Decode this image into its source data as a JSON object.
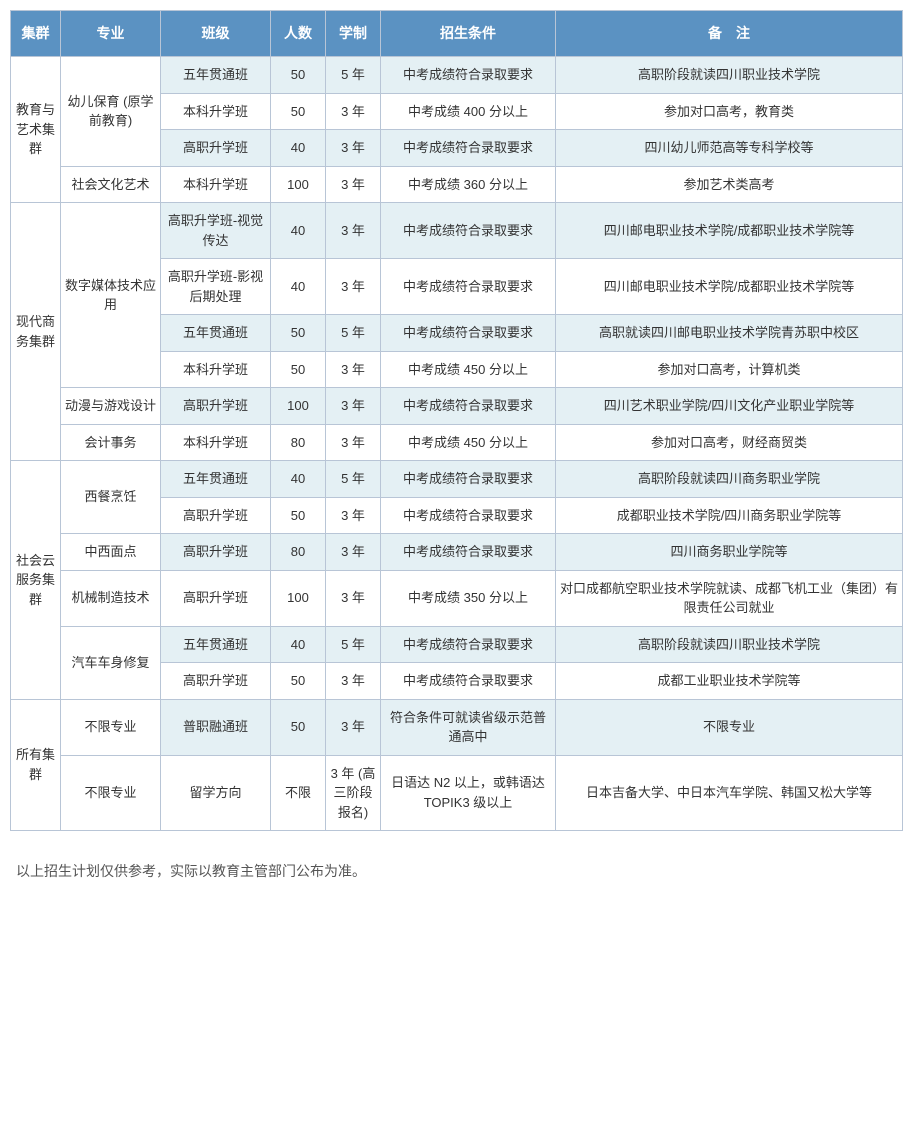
{
  "headers": {
    "cluster": "集群",
    "major": "专业",
    "class": "班级",
    "count": "人数",
    "duration": "学制",
    "condition": "招生条件",
    "remark": "备　注"
  },
  "rows": [
    {
      "cluster": "教育与艺术集群",
      "clusterRowspan": 4,
      "major": "幼儿保育 (原学前教育)",
      "majorRowspan": 3,
      "class": "五年贯通班",
      "count": "50",
      "duration": "5 年",
      "condition": "中考成绩符合录取要求",
      "remark": "高职阶段就读四川职业技术学院",
      "alt": true
    },
    {
      "class": "本科升学班",
      "count": "50",
      "duration": "3 年",
      "condition": "中考成绩 400 分以上",
      "remark": "参加对口高考，教育类",
      "alt": false
    },
    {
      "class": "高职升学班",
      "count": "40",
      "duration": "3 年",
      "condition": "中考成绩符合录取要求",
      "remark": "四川幼儿师范高等专科学校等",
      "alt": true
    },
    {
      "major": "社会文化艺术",
      "majorRowspan": 1,
      "class": "本科升学班",
      "count": "100",
      "duration": "3 年",
      "condition": "中考成绩 360 分以上",
      "remark": "参加艺术类高考",
      "alt": false
    },
    {
      "cluster": "现代商务集群",
      "clusterRowspan": 6,
      "major": "数字媒体技术应用",
      "majorRowspan": 4,
      "class": "高职升学班-视觉传达",
      "count": "40",
      "duration": "3 年",
      "condition": "中考成绩符合录取要求",
      "remark": "四川邮电职业技术学院/成都职业技术学院等",
      "alt": true
    },
    {
      "class": "高职升学班-影视后期处理",
      "count": "40",
      "duration": "3 年",
      "condition": "中考成绩符合录取要求",
      "remark": "四川邮电职业技术学院/成都职业技术学院等",
      "alt": false
    },
    {
      "class": "五年贯通班",
      "count": "50",
      "duration": "5 年",
      "condition": "中考成绩符合录取要求",
      "remark": "高职就读四川邮电职业技术学院青苏职中校区",
      "alt": true
    },
    {
      "class": "本科升学班",
      "count": "50",
      "duration": "3 年",
      "condition": "中考成绩 450 分以上",
      "remark": "参加对口高考，计算机类",
      "alt": false
    },
    {
      "major": "动漫与游戏设计",
      "majorRowspan": 1,
      "class": "高职升学班",
      "count": "100",
      "duration": "3 年",
      "condition": "中考成绩符合录取要求",
      "remark": "四川艺术职业学院/四川文化产业职业学院等",
      "alt": true
    },
    {
      "major": "会计事务",
      "majorRowspan": 1,
      "class": "本科升学班",
      "count": "80",
      "duration": "3 年",
      "condition": "中考成绩 450 分以上",
      "remark": "参加对口高考，财经商贸类",
      "alt": false
    },
    {
      "cluster": "社会云服务集群",
      "clusterRowspan": 6,
      "major": "西餐烹饪",
      "majorRowspan": 2,
      "class": "五年贯通班",
      "count": "40",
      "duration": "5 年",
      "condition": "中考成绩符合录取要求",
      "remark": "高职阶段就读四川商务职业学院",
      "alt": true
    },
    {
      "class": "高职升学班",
      "count": "50",
      "duration": "3 年",
      "condition": "中考成绩符合录取要求",
      "remark": "成都职业技术学院/四川商务职业学院等",
      "alt": false
    },
    {
      "major": "中西面点",
      "majorRowspan": 1,
      "class": "高职升学班",
      "count": "80",
      "duration": "3 年",
      "condition": "中考成绩符合录取要求",
      "remark": "四川商务职业学院等",
      "alt": true
    },
    {
      "major": "机械制造技术",
      "majorRowspan": 1,
      "class": "高职升学班",
      "count": "100",
      "duration": "3 年",
      "condition": "中考成绩 350 分以上",
      "remark": "对口成都航空职业技术学院就读、成都飞机工业（集团）有限责任公司就业",
      "alt": false
    },
    {
      "major": "汽车车身修复",
      "majorRowspan": 2,
      "class": "五年贯通班",
      "count": "40",
      "duration": "5 年",
      "condition": "中考成绩符合录取要求",
      "remark": "高职阶段就读四川职业技术学院",
      "alt": true
    },
    {
      "class": "高职升学班",
      "count": "50",
      "duration": "3 年",
      "condition": "中考成绩符合录取要求",
      "remark": "成都工业职业技术学院等",
      "alt": false
    },
    {
      "cluster": "所有集群",
      "clusterRowspan": 2,
      "major": "不限专业",
      "majorRowspan": 1,
      "class": "普职融通班",
      "count": "50",
      "duration": "3 年",
      "condition": "符合条件可就读省级示范普通高中",
      "remark": "不限专业",
      "alt": true
    },
    {
      "major": "不限专业",
      "majorRowspan": 1,
      "class": "留学方向",
      "count": "不限",
      "duration": "3 年 (高三阶段报名)",
      "condition": "日语达 N2 以上，或韩语达TOPIK3 级以上",
      "remark": "日本吉备大学、中日本汽车学院、韩国又松大学等",
      "alt": false
    }
  ],
  "footnote": "以上招生计划仅供参考，实际以教育主管部门公布为准。",
  "style": {
    "header_bg": "#5b92c2",
    "header_color": "#ffffff",
    "alt_bg": "#e4f0f4",
    "border_color": "#b8c5d6",
    "font_size_cell": 13,
    "font_size_header": 14
  }
}
